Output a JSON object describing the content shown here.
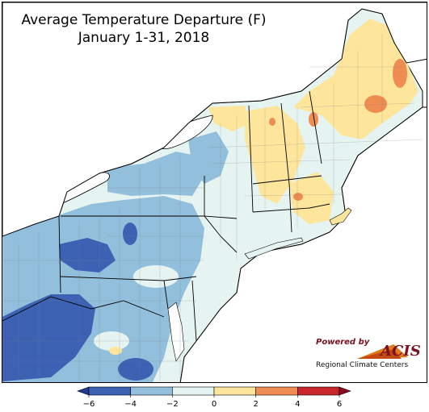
{
  "map": {
    "title_line1": "Average Temperature Departure (F)",
    "title_line2": "January 1-31, 2018",
    "region": "Northeast United States"
  },
  "logo": {
    "powered_by": "Powered by",
    "brand": "ACIS",
    "subtitle": "Regional Climate Centers"
  },
  "legend": {
    "tick_labels": [
      "−6",
      "−4",
      "−2",
      "0",
      "2",
      "4",
      "6"
    ],
    "bins": [
      {
        "from": -6,
        "to": -4,
        "color": "#3d62b4"
      },
      {
        "from": -4,
        "to": -2,
        "color": "#92bfdc"
      },
      {
        "from": -2,
        "to": 0,
        "color": "#e6f4f1"
      },
      {
        "from": 0,
        "to": 2,
        "color": "#fde59c"
      },
      {
        "from": 2,
        "to": 4,
        "color": "#ef8c52"
      },
      {
        "from": 4,
        "to": 6,
        "color": "#c8262a"
      }
    ],
    "below_color": "#1f3a90",
    "above_color": "#8f0a1e"
  },
  "colors": {
    "lake": "#ffffff",
    "border": "#000000",
    "county": "#7a7a7a"
  }
}
